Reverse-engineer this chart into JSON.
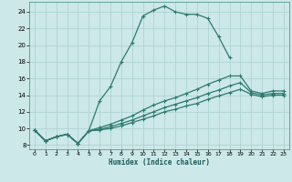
{
  "xlabel": "Humidex (Indice chaleur)",
  "background_color": "#cce8e8",
  "grid_color": "#aacfcf",
  "line_color": "#2d7a6e",
  "xlim": [
    -0.5,
    23.5
  ],
  "ylim": [
    7.5,
    25.2
  ],
  "xticks": [
    0,
    1,
    2,
    3,
    4,
    5,
    6,
    7,
    8,
    9,
    10,
    11,
    12,
    13,
    14,
    15,
    16,
    17,
    18,
    19,
    20,
    21,
    22,
    23
  ],
  "yticks": [
    8,
    10,
    12,
    14,
    16,
    18,
    20,
    22,
    24
  ],
  "series1_x": [
    0,
    1,
    2,
    3,
    4,
    5,
    6,
    7,
    8,
    9,
    10,
    11,
    12,
    13,
    14,
    15,
    16,
    17,
    18
  ],
  "series1_y": [
    9.8,
    8.5,
    9.0,
    9.3,
    8.2,
    9.7,
    13.3,
    15.0,
    18.0,
    20.3,
    23.5,
    24.2,
    24.7,
    24.0,
    23.7,
    23.7,
    23.2,
    21.0,
    18.5
  ],
  "series2_x": [
    0,
    1,
    2,
    3,
    4,
    5,
    6,
    7,
    8,
    9,
    10,
    11,
    12,
    13,
    14,
    15,
    16,
    17,
    18,
    19,
    20,
    21,
    22,
    23
  ],
  "series2_y": [
    9.8,
    8.5,
    9.0,
    9.3,
    8.2,
    9.7,
    10.1,
    10.5,
    11.0,
    11.5,
    12.2,
    12.8,
    13.3,
    13.7,
    14.2,
    14.7,
    15.3,
    15.8,
    16.3,
    16.3,
    14.5,
    14.2,
    14.5,
    14.5
  ],
  "series3_x": [
    0,
    1,
    2,
    3,
    4,
    5,
    6,
    7,
    8,
    9,
    10,
    11,
    12,
    13,
    14,
    15,
    16,
    17,
    18,
    19,
    20,
    21,
    22,
    23
  ],
  "series3_y": [
    9.8,
    8.5,
    9.0,
    9.3,
    8.2,
    9.7,
    9.9,
    10.2,
    10.6,
    11.0,
    11.5,
    12.0,
    12.5,
    12.9,
    13.3,
    13.7,
    14.2,
    14.6,
    15.1,
    15.5,
    14.3,
    14.0,
    14.2,
    14.2
  ],
  "series4_x": [
    0,
    1,
    2,
    3,
    4,
    5,
    6,
    7,
    8,
    9,
    10,
    11,
    12,
    13,
    14,
    15,
    16,
    17,
    18,
    19,
    20,
    21,
    22,
    23
  ],
  "series4_y": [
    9.8,
    8.5,
    9.0,
    9.3,
    8.2,
    9.7,
    9.8,
    10.0,
    10.3,
    10.7,
    11.1,
    11.5,
    12.0,
    12.3,
    12.7,
    13.0,
    13.5,
    13.9,
    14.3,
    14.7,
    14.1,
    13.8,
    14.0,
    14.0
  ]
}
